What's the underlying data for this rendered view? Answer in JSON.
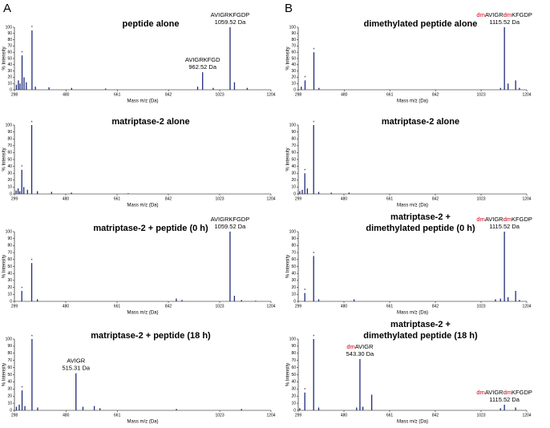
{
  "panel_labels": [
    "A",
    "B"
  ],
  "chart_data": [
    {
      "type": "stem",
      "title": [
        "peptide alone"
      ],
      "xlabel": "Mass m/z (Da)",
      "ylabel": "% Intensity",
      "color": "#1f2a7a",
      "xlim": [
        298,
        1204
      ],
      "ylim": [
        0,
        100
      ],
      "xticks": [
        298,
        480,
        661,
        842,
        1023,
        1204
      ],
      "yticks": [
        0,
        10,
        20,
        30,
        40,
        50,
        60,
        70,
        80,
        90,
        100
      ],
      "x": [
        305,
        312,
        318,
        325,
        332,
        340,
        360,
        372,
        420,
        500,
        620,
        945,
        962.52,
        1000,
        1059.52,
        1075,
        1120
      ],
      "values": [
        8,
        15,
        10,
        55,
        20,
        12,
        95,
        5,
        4,
        3,
        2,
        5,
        28,
        3,
        100,
        12,
        3
      ],
      "stars": [
        {
          "text": "*",
          "x": 325,
          "y": 55
        },
        {
          "text": "*",
          "x": 360,
          "y": 95
        }
      ],
      "annotations": [
        {
          "x": 962.52,
          "y": 28,
          "lines": [
            [
              {
                "text": "AVIGRKFGD"
              }
            ],
            [
              {
                "text": "962.52 Da"
              }
            ]
          ]
        },
        {
          "x": 1059.52,
          "y": 100,
          "lines": [
            [
              {
                "text": "AVIGRKFGDP"
              }
            ],
            [
              {
                "text": "1059.52 Da"
              }
            ]
          ]
        }
      ]
    },
    {
      "type": "stem",
      "title": [
        "matriptase-2 alone"
      ],
      "xlabel": "Mass m/z (Da)",
      "ylabel": "% Intensity",
      "color": "#1f2a7a",
      "xlim": [
        299,
        1204
      ],
      "ylim": [
        0,
        100
      ],
      "xticks": [
        299,
        480,
        661,
        842,
        1023,
        1204
      ],
      "yticks": [
        0,
        10,
        20,
        30,
        40,
        50,
        60,
        70,
        80,
        90,
        100
      ],
      "x": [
        305,
        312,
        318,
        325,
        332,
        345,
        360,
        380,
        430,
        500,
        700
      ],
      "values": [
        5,
        8,
        4,
        35,
        10,
        6,
        100,
        4,
        3,
        2,
        1
      ],
      "stars": [
        {
          "text": "*",
          "x": 325,
          "y": 35
        },
        {
          "text": "*",
          "x": 360,
          "y": 100
        }
      ],
      "annotations": []
    },
    {
      "type": "stem",
      "title": [
        "matriptase-2 + peptide (0 h)"
      ],
      "xlabel": "Mass m/z (Da)",
      "ylabel": "% Intensity",
      "color": "#1f2a7a",
      "xlim": [
        299,
        1204
      ],
      "ylim": [
        0,
        100
      ],
      "xticks": [
        299,
        480,
        661,
        842,
        1023,
        1204
      ],
      "yticks": [
        0,
        10,
        20,
        30,
        40,
        50,
        60,
        70,
        80,
        90,
        100
      ],
      "x": [
        325,
        360,
        380,
        870,
        890,
        1059.52,
        1075,
        1100,
        1150
      ],
      "values": [
        15,
        55,
        3,
        4,
        2,
        100,
        8,
        2,
        1
      ],
      "stars": [
        {
          "text": "*",
          "x": 325,
          "y": 15
        },
        {
          "text": "*",
          "x": 360,
          "y": 55
        }
      ],
      "annotations": [
        {
          "x": 1059.52,
          "y": 100,
          "lines": [
            [
              {
                "text": "AVIGRKFGDP"
              }
            ],
            [
              {
                "text": "1059.52 Da"
              }
            ]
          ]
        }
      ]
    },
    {
      "type": "stem",
      "title": [
        "matriptase-2 + peptide (18 h)"
      ],
      "xlabel": "Mass m/z (Da)",
      "ylabel": "% Intensity",
      "color": "#1f2a7a",
      "xlim": [
        298,
        1204
      ],
      "ylim": [
        0,
        100
      ],
      "xticks": [
        298,
        480,
        661,
        1023,
        1204
      ],
      "yticks": [
        0,
        10,
        20,
        30,
        40,
        50,
        60,
        70,
        80,
        90,
        100
      ],
      "x": [
        305,
        315,
        325,
        335,
        360,
        380,
        515.31,
        540,
        580,
        600,
        870,
        1100
      ],
      "values": [
        5,
        8,
        28,
        6,
        100,
        4,
        52,
        5,
        6,
        3,
        2,
        2
      ],
      "stars": [
        {
          "text": "*",
          "x": 325,
          "y": 28
        },
        {
          "text": "*",
          "x": 360,
          "y": 100
        }
      ],
      "annotations": [
        {
          "x": 515.31,
          "y": 52,
          "lines": [
            [
              {
                "text": "AVIGR"
              }
            ],
            [
              {
                "text": "515.31 Da"
              }
            ]
          ]
        }
      ]
    },
    {
      "type": "stem",
      "title": [
        "dimethylated peptide alone"
      ],
      "xlabel": "Mass m/z (Da)",
      "ylabel": "% Intensity",
      "color": "#1f2a7a",
      "xlim": [
        298,
        1204
      ],
      "ylim": [
        0,
        100
      ],
      "xticks": [
        298,
        480,
        661,
        842,
        1023,
        1204
      ],
      "yticks": [
        0,
        10,
        20,
        30,
        40,
        50,
        60,
        70,
        80,
        90,
        100
      ],
      "x": [
        310,
        325,
        360,
        380,
        1100,
        1115.52,
        1130,
        1160,
        1175
      ],
      "values": [
        5,
        15,
        60,
        3,
        3,
        100,
        10,
        15,
        3
      ],
      "stars": [
        {
          "text": "*",
          "x": 325,
          "y": 15
        },
        {
          "text": "*",
          "x": 360,
          "y": 60
        }
      ],
      "annotations": [
        {
          "x": 1115.52,
          "y": 100,
          "lines": [
            [
              {
                "text": "dm",
                "color": "#d0021b"
              },
              {
                "text": "AVIGR"
              },
              {
                "text": "dm",
                "color": "#d0021b"
              },
              {
                "text": "KFGDP"
              }
            ],
            [
              {
                "text": "1115.52 Da"
              }
            ]
          ]
        }
      ]
    },
    {
      "type": "stem",
      "title": [
        "matriptase-2 alone"
      ],
      "xlabel": "Mass m/z (Da)",
      "ylabel": "% Intensity",
      "color": "#1f2a7a",
      "xlim": [
        299,
        1204
      ],
      "ylim": [
        0,
        100
      ],
      "xticks": [
        299,
        480,
        661,
        842,
        1023,
        1204
      ],
      "yticks": [
        0,
        10,
        20,
        30,
        40,
        50,
        60,
        70,
        80,
        90,
        100
      ],
      "x": [
        305,
        315,
        325,
        335,
        360,
        380,
        430,
        500
      ],
      "values": [
        4,
        6,
        30,
        8,
        100,
        3,
        2,
        2
      ],
      "stars": [
        {
          "text": "*",
          "x": 325,
          "y": 30
        },
        {
          "text": "*",
          "x": 360,
          "y": 100
        }
      ],
      "annotations": []
    },
    {
      "type": "stem",
      "title": [
        "matriptase-2 +",
        "dimethylated peptide  (0 h)"
      ],
      "xlabel": "Mass m/z (Da)",
      "ylabel": "% Intensity",
      "color": "#1f2a7a",
      "xlim": [
        299,
        1204
      ],
      "ylim": [
        0,
        100
      ],
      "xticks": [
        299,
        480,
        661,
        842,
        1023,
        1204
      ],
      "yticks": [
        0,
        10,
        20,
        30,
        40,
        50,
        60,
        70,
        80,
        90,
        100
      ],
      "x": [
        325,
        360,
        380,
        520,
        1080,
        1100,
        1115.52,
        1130,
        1160,
        1175
      ],
      "values": [
        12,
        65,
        3,
        3,
        3,
        4,
        100,
        6,
        15,
        2
      ],
      "stars": [
        {
          "text": "*",
          "x": 325,
          "y": 12
        },
        {
          "text": "*",
          "x": 360,
          "y": 65
        }
      ],
      "annotations": [
        {
          "x": 1115.52,
          "y": 100,
          "lines": [
            [
              {
                "text": "dm",
                "color": "#d0021b"
              },
              {
                "text": "AVIGR"
              },
              {
                "text": "dm",
                "color": "#d0021b"
              },
              {
                "text": "KFGDP"
              }
            ],
            [
              {
                "text": "1115.52 Da"
              }
            ]
          ]
        }
      ]
    },
    {
      "type": "stem",
      "title": [
        "matriptase-2 +",
        "dimethylated peptide (18 h)"
      ],
      "xlabel": "Mass m/z (Da)",
      "ylabel": "% Intensity",
      "color": "#1f2a7a",
      "xlim": [
        299,
        1204
      ],
      "ylim": [
        0,
        100
      ],
      "xticks": [
        299,
        480,
        661,
        842,
        1023,
        1204
      ],
      "yticks": [
        0,
        10,
        20,
        30,
        40,
        50,
        60,
        70,
        80,
        90,
        100
      ],
      "x": [
        305,
        325,
        360,
        380,
        530,
        543.3,
        555,
        590,
        1100,
        1115.52,
        1160
      ],
      "values": [
        3,
        25,
        100,
        4,
        4,
        72,
        5,
        22,
        3,
        8,
        4
      ],
      "stars": [
        {
          "text": "*",
          "x": 325,
          "y": 25
        },
        {
          "text": "*",
          "x": 360,
          "y": 100
        }
      ],
      "annotations": [
        {
          "x": 543.3,
          "y": 72,
          "lines": [
            [
              {
                "text": "dm",
                "color": "#d0021b"
              },
              {
                "text": "AVIGR"
              }
            ],
            [
              {
                "text": "543.30 Da"
              }
            ]
          ]
        },
        {
          "x": 1115.52,
          "y": 8,
          "lines": [
            [
              {
                "text": "dm",
                "color": "#d0021b"
              },
              {
                "text": "AVIGR"
              },
              {
                "text": "dm",
                "color": "#d0021b"
              },
              {
                "text": "KFGDP"
              }
            ],
            [
              {
                "text": "1115.52 Da"
              }
            ]
          ]
        }
      ]
    }
  ]
}
